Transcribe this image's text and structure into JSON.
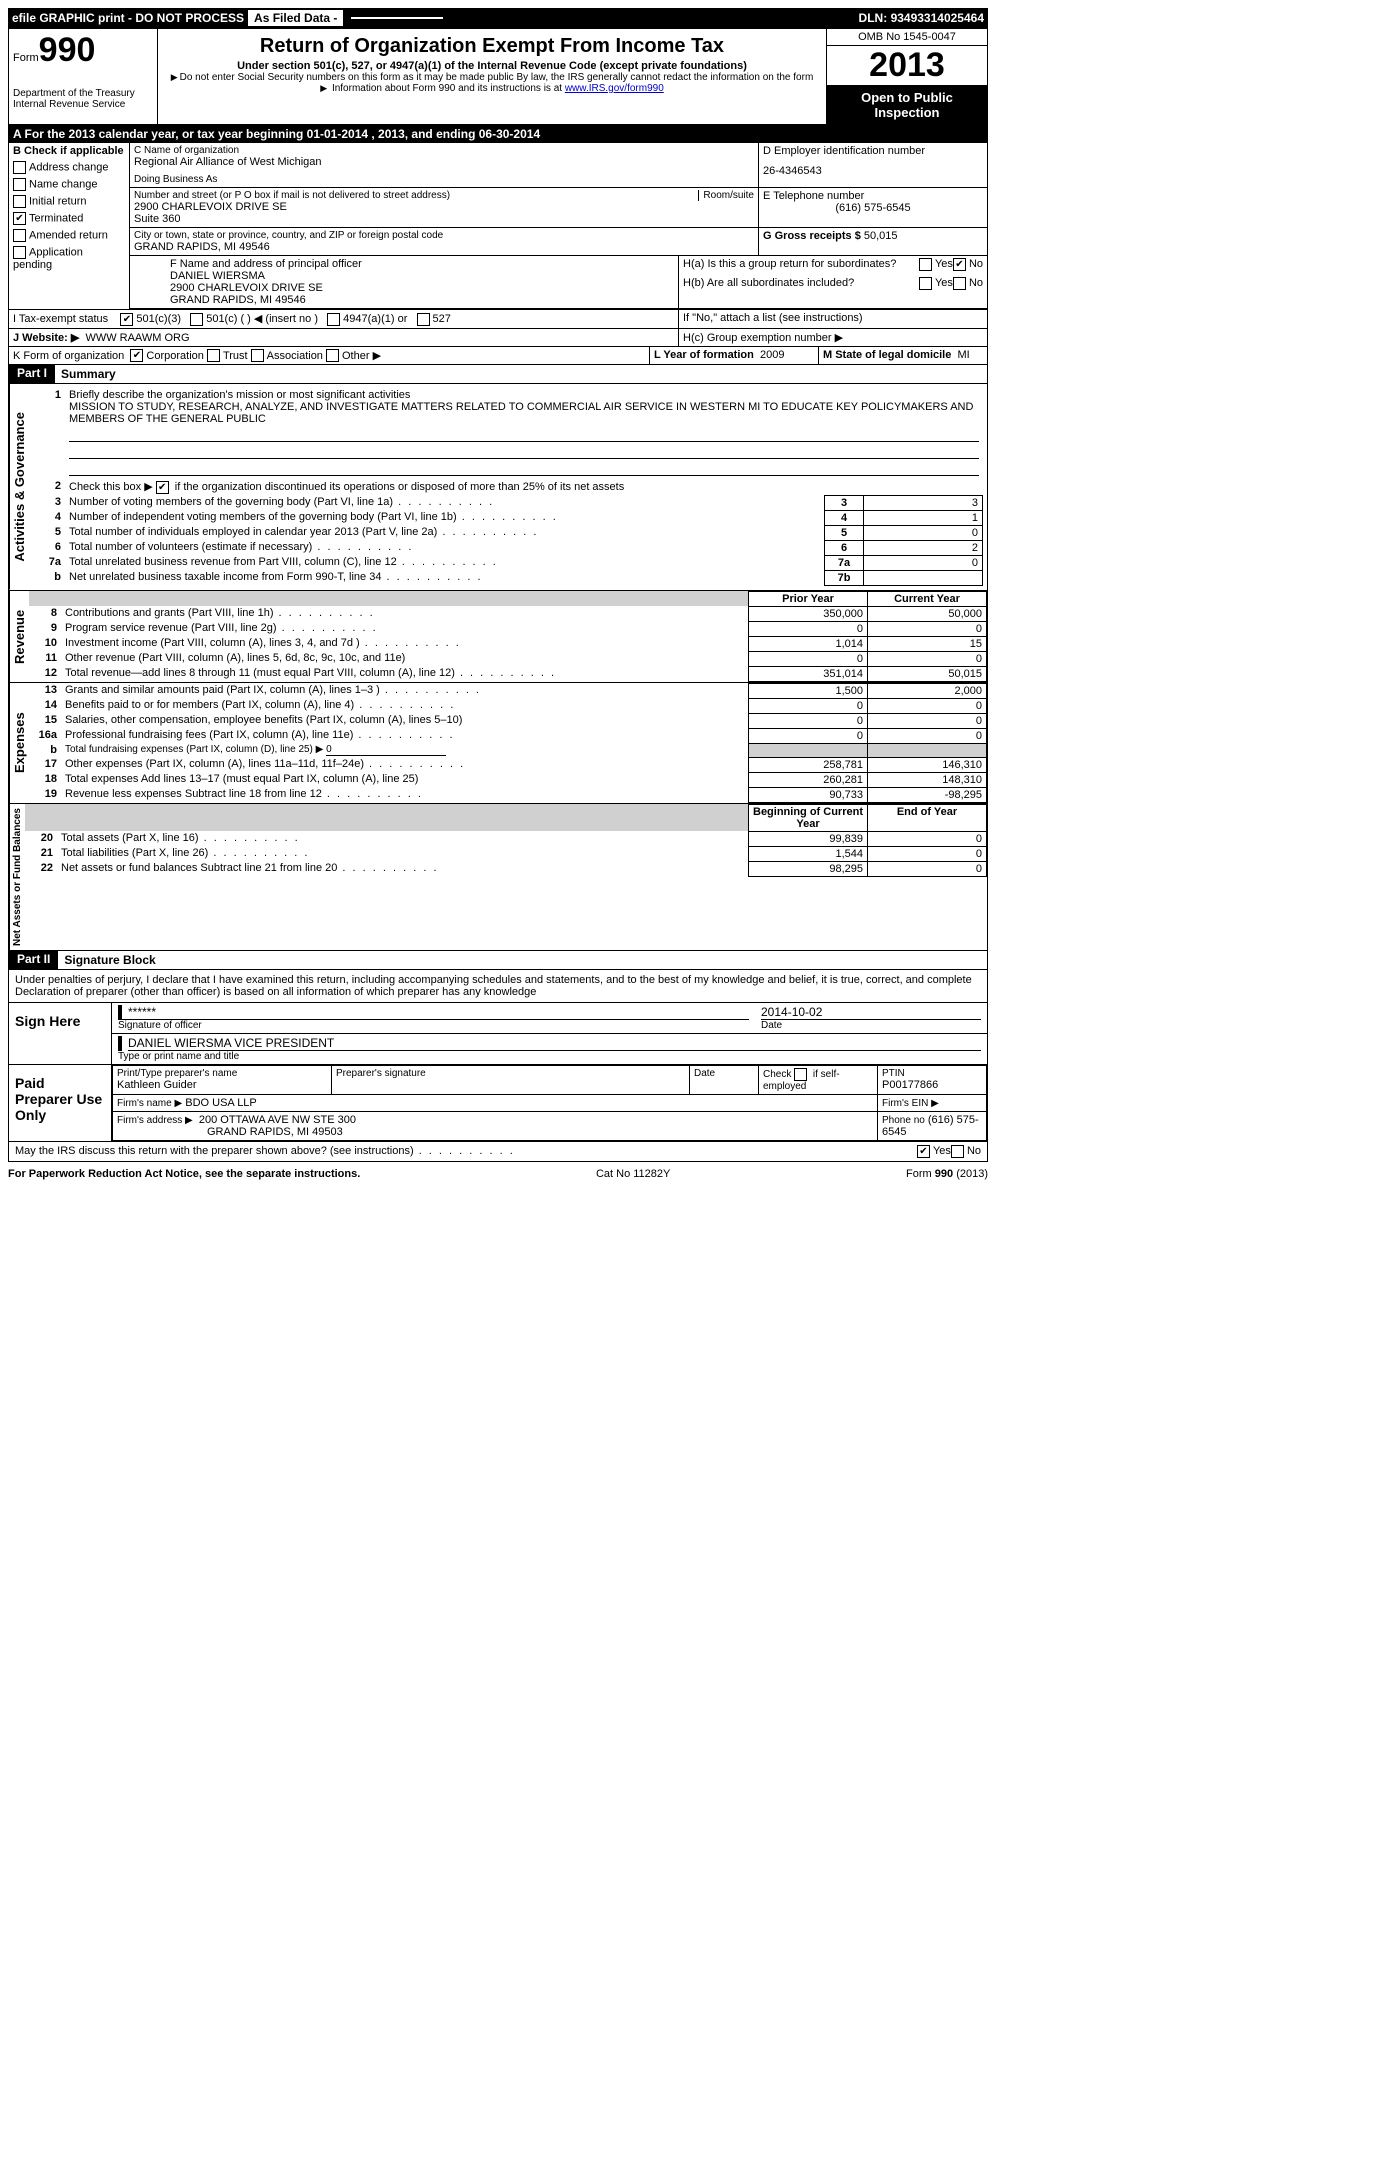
{
  "header": {
    "efile": "efile GRAPHIC print - DO NOT PROCESS",
    "asFiled": "As Filed Data -",
    "dln_label": "DLN:",
    "dln": "93493314025464"
  },
  "form": {
    "form_label": "Form",
    "form_no": "990",
    "dept1": "Department of the Treasury",
    "dept2": "Internal Revenue Service",
    "title": "Return of Organization Exempt From Income Tax",
    "sub": "Under section 501(c), 527, or 4947(a)(1) of the Internal Revenue Code (except private foundations)",
    "note1": "Do not enter Social Security numbers on this form as it may be made public  By law, the IRS generally cannot redact the information on the form",
    "note2": "Information about Form 990 and its instructions is at ",
    "link": "www.IRS.gov/form990",
    "omb": "OMB No  1545-0047",
    "year": "2013",
    "inspect": "Open to Public Inspection"
  },
  "A": "A  For the 2013 calendar year, or tax year beginning 01-01-2014     , 2013, and ending 06-30-2014",
  "B": {
    "label": "B  Check if applicable",
    "items": [
      "Address change",
      "Name change",
      "Initial return",
      "Terminated",
      "Amended return",
      "Application pending"
    ],
    "checked_idx": 3
  },
  "C": {
    "label": "C Name of organization",
    "name": "Regional Air Alliance of West Michigan",
    "dba_label": "Doing Business As",
    "addr_label": "Number and street (or P O  box if mail is not delivered to street address)",
    "room": "Room/suite",
    "addr1": "2900 CHARLEVOIX DRIVE SE",
    "addr2": "Suite 360",
    "city_label": "City or town, state or province, country, and ZIP or foreign postal code",
    "city": "GRAND RAPIDS, MI  49546"
  },
  "D": {
    "label": "D Employer identification number",
    "val": "26-4346543"
  },
  "E": {
    "label": "E Telephone number",
    "val": "(616) 575-6545"
  },
  "G": {
    "label": "G Gross receipts $",
    "val": "50,015"
  },
  "F": {
    "label": "F  Name and address of principal officer",
    "name": "DANIEL WIERSMA",
    "addr": "2900 CHARLEVOIX DRIVE SE",
    "city": "GRAND RAPIDS, MI  49546"
  },
  "H": {
    "a": "H(a)  Is this a group return for subordinates?",
    "b": "H(b)  Are all subordinates included?",
    "ifno": "If \"No,\" attach a list  (see instructions)",
    "c": "H(c)   Group exemption number ▶",
    "yes": "Yes",
    "no": "No"
  },
  "I": {
    "label": "I   Tax-exempt status",
    "o1": "501(c)(3)",
    "o2": "501(c) (  )",
    "ins": "◀ (insert no )",
    "o3": "4947(a)(1) or",
    "o4": "527"
  },
  "J": {
    "label": "J   Website: ▶",
    "val": "WWW RAAWM ORG"
  },
  "K": {
    "label": "K Form of organization",
    "o1": "Corporation",
    "o2": "Trust",
    "o3": "Association",
    "o4": "Other ▶"
  },
  "L": {
    "label": "L Year of formation",
    "val": "2009"
  },
  "M": {
    "label": "M State of legal domicile",
    "val": "MI"
  },
  "part1": {
    "label": "Part I",
    "title": "Summary"
  },
  "gov": {
    "side": "Activities & Governance",
    "l1": "Briefly describe the organization's mission or most significant activities",
    "mission": "MISSION TO STUDY, RESEARCH, ANALYZE, AND INVESTIGATE MATTERS RELATED TO COMMERCIAL AIR SERVICE IN WESTERN MI TO EDUCATE KEY POLICYMAKERS AND MEMBERS OF THE GENERAL PUBLIC",
    "l2": "Check this box ▶      if the organization discontinued its operations or disposed of more than 25% of its net assets",
    "l3": "Number of voting members of the governing body (Part VI, line 1a)",
    "l4": "Number of independent voting members of the governing body (Part VI, line 1b)",
    "l5": "Total number of individuals employed in calendar year 2013 (Part V, line 2a)",
    "l6": "Total number of volunteers (estimate if necessary)",
    "l7a": "Total unrelated business revenue from Part VIII, column (C), line 12",
    "l7b": "Net unrelated business taxable income from Form 990-T, line 34",
    "v3": "3",
    "v4": "1",
    "v5": "0",
    "v6": "2",
    "v7a": "0",
    "v7b": ""
  },
  "cols": {
    "prior": "Prior Year",
    "current": "Current Year"
  },
  "rev": {
    "side": "Revenue",
    "l8": "Contributions and grants (Part VIII, line 1h)",
    "l9": "Program service revenue (Part VIII, line 2g)",
    "l10": "Investment income (Part VIII, column (A), lines 3, 4, and 7d )",
    "l11": "Other revenue (Part VIII, column (A), lines 5, 6d, 8c, 9c, 10c, and 11e)",
    "l12": "Total revenue—add lines 8 through 11 (must equal Part VIII, column (A), line 12)",
    "p8": "350,000",
    "c8": "50,000",
    "p9": "0",
    "c9": "0",
    "p10": "1,014",
    "c10": "15",
    "p11": "0",
    "c11": "0",
    "p12": "351,014",
    "c12": "50,015"
  },
  "exp": {
    "side": "Expenses",
    "l13": "Grants and similar amounts paid (Part IX, column (A), lines 1–3 )",
    "l14": "Benefits paid to or for members (Part IX, column (A), line 4)",
    "l15": "Salaries, other compensation, employee benefits (Part IX, column (A), lines 5–10)",
    "l16a": "Professional fundraising fees (Part IX, column (A), line 11e)",
    "l16b": "Total fundraising expenses (Part IX, column (D), line 25) ▶",
    "l17": "Other expenses (Part IX, column (A), lines 11a–11d, 11f–24e)",
    "l18": "Total expenses  Add lines 13–17 (must equal Part IX, column (A), line 25)",
    "l19": "Revenue less expenses  Subtract line 18 from line 12",
    "p13": "1,500",
    "c13": "2,000",
    "p14": "0",
    "c14": "0",
    "p15": "0",
    "c15": "0",
    "p16a": "0",
    "c16a": "0",
    "fundraise": "0",
    "p17": "258,781",
    "c17": "146,310",
    "p18": "260,281",
    "c18": "148,310",
    "p19": "90,733",
    "c19": "-98,295"
  },
  "net": {
    "side": "Net Assets or Fund Balances",
    "colA": "Beginning of Current Year",
    "colB": "End of Year",
    "l20": "Total assets (Part X, line 16)",
    "l21": "Total liabilities (Part X, line 26)",
    "l22": "Net assets or fund balances  Subtract line 21 from line 20",
    "p20": "99,839",
    "c20": "0",
    "p21": "1,544",
    "c21": "0",
    "p22": "98,295",
    "c22": "0"
  },
  "part2": {
    "label": "Part II",
    "title": "Signature Block"
  },
  "decl": "Under penalties of perjury, I declare that I have examined this return, including accompanying schedules and statements, and to the best of my knowledge and belief, it is true, correct, and complete  Declaration of preparer (other than officer) is based on all information of which preparer has any knowledge",
  "sign": {
    "here": "Sign Here",
    "stars": "******",
    "sigof": "Signature of officer",
    "date_label": "Date",
    "date": "2014-10-02",
    "name": "DANIEL WIERSMA VICE PRESIDENT",
    "type": "Type or print name and title"
  },
  "prep": {
    "side": "Paid Preparer Use Only",
    "h1": "Print/Type preparer's name",
    "n1": "Kathleen Guider",
    "h2": "Preparer's signature",
    "h3": "Date",
    "h4": "Check        if self-employed",
    "h5": "PTIN",
    "ptin": "P00177866",
    "firm_label": "Firm's name   ▶",
    "firm": "BDO USA LLP",
    "ein_label": "Firm's EIN ▶",
    "addr_label": "Firm's address ▶",
    "addr": "200 OTTAWA AVE NW STE 300",
    "city": "GRAND RAPIDS, MI  49503",
    "phone_label": "Phone no",
    "phone": "(616) 575-6545"
  },
  "discuss": "May the IRS discuss this return with the preparer shown above? (see instructions)",
  "footer": {
    "left": "For Paperwork Reduction Act Notice, see the separate instructions.",
    "mid": "Cat No  11282Y",
    "right": "Form 990 (2013)"
  }
}
